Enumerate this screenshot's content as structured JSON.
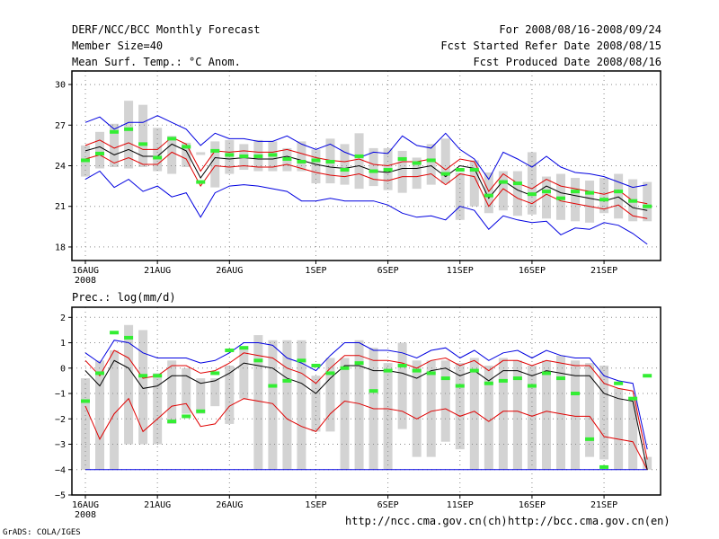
{
  "header": {
    "title": "DERF/NCC/BCC Monthly Forecast",
    "member_size": "Member Size=40",
    "variable": "Mean Surf. Temp.: °C Anom.",
    "period": "For 2008/08/16-2008/09/24",
    "started": "Fcst Started Refer Date 2008/08/15",
    "produced": "Fcst Produced Date 2008/08/16"
  },
  "footer": {
    "ncc_url": "http://ncc.cma.gov.cn(ch)",
    "bcc_url": "http://bcc.cma.gov.cn(en)",
    "credit": "GrADS: COLA/IGES"
  },
  "colors": {
    "ensemble_mean": "#000000",
    "std_band": "#e00000",
    "range_envelope": "#0000e0",
    "observed": "#33ee33",
    "spread_bar": "#d3d3d3"
  },
  "chart_data": [
    {
      "type": "line",
      "title": "Mean Surf. Temp.: °C Anom.",
      "x_tick_labels": [
        "16AUG",
        "21AUG",
        "26AUG",
        "1SEP",
        "6SEP",
        "11SEP",
        "16SEP",
        "21SEP"
      ],
      "x_year_label": "2008",
      "y_ticks": [
        18,
        21,
        24,
        27,
        30
      ],
      "y_tick_labels": [
        "18",
        "21",
        "24",
        "27",
        "30"
      ],
      "ylim": [
        17,
        31
      ],
      "grid": true,
      "days": [
        0,
        1,
        2,
        3,
        4,
        5,
        6,
        7,
        8,
        9,
        10,
        11,
        12,
        13,
        14,
        15,
        16,
        17,
        18,
        19,
        20,
        21,
        22,
        23,
        24,
        25,
        26,
        27,
        28,
        29,
        30,
        31,
        32,
        33,
        34,
        35,
        36,
        37,
        38,
        39
      ],
      "bar_low": [
        23.2,
        23.8,
        23.9,
        23.8,
        23.9,
        23.6,
        23.4,
        23.9,
        24.8,
        22.4,
        23.4,
        23.7,
        23.6,
        23.6,
        23.6,
        23.6,
        22.7,
        22.7,
        22.6,
        22.3,
        22.5,
        22.2,
        22.0,
        22.3,
        22.6,
        22.7,
        20.0,
        21.0,
        20.5,
        20.7,
        20.3,
        20.4,
        20.1,
        20.0,
        19.9,
        19.8,
        20.5,
        20.1,
        19.9,
        19.9
      ],
      "bar_high": [
        25.5,
        26.5,
        27.1,
        28.8,
        28.5,
        26.8,
        26.2,
        25.7,
        25.0,
        25.8,
        25.9,
        25.6,
        25.9,
        25.8,
        25.3,
        25.8,
        25.2,
        26.0,
        25.6,
        26.4,
        25.3,
        25.3,
        25.1,
        24.6,
        25.6,
        26.0,
        23.5,
        24.4,
        23.5,
        23.6,
        23.6,
        25.0,
        23.2,
        23.4,
        23.1,
        22.9,
        23.1,
        23.4,
        23.0,
        22.8
      ],
      "ensemble_mean": [
        25.1,
        25.4,
        24.8,
        25.2,
        24.7,
        24.7,
        25.6,
        25.1,
        23.1,
        24.6,
        24.5,
        24.6,
        24.5,
        24.5,
        24.7,
        24.4,
        24.1,
        23.9,
        23.8,
        24.0,
        23.6,
        23.5,
        23.8,
        23.8,
        24.0,
        23.2,
        24.0,
        23.8,
        21.6,
        22.9,
        22.2,
        21.8,
        22.5,
        22.0,
        21.8,
        21.6,
        21.4,
        21.7,
        20.9,
        20.7
      ],
      "std_upper": [
        25.5,
        25.9,
        25.3,
        25.7,
        25.2,
        25.2,
        26.1,
        25.6,
        23.6,
        25.1,
        25.0,
        25.1,
        25.0,
        25.0,
        25.2,
        24.9,
        24.6,
        24.4,
        24.3,
        24.5,
        24.1,
        24.0,
        24.3,
        24.3,
        24.5,
        23.7,
        24.5,
        24.3,
        22.1,
        23.4,
        22.7,
        22.3,
        23.0,
        22.5,
        22.3,
        22.1,
        21.9,
        22.2,
        21.4,
        21.2
      ],
      "std_lower": [
        24.5,
        24.8,
        24.2,
        24.6,
        24.1,
        24.1,
        25.0,
        24.5,
        22.5,
        24.0,
        23.9,
        24.0,
        23.9,
        23.9,
        24.1,
        23.8,
        23.5,
        23.3,
        23.2,
        23.4,
        23.0,
        22.9,
        23.2,
        23.2,
        23.4,
        22.6,
        23.4,
        23.2,
        21.0,
        22.3,
        21.6,
        21.2,
        21.9,
        21.4,
        21.2,
        21.0,
        20.8,
        21.1,
        20.3,
        20.1
      ],
      "max_envelope": [
        27.2,
        27.6,
        26.7,
        27.2,
        27.2,
        27.7,
        27.2,
        26.7,
        25.5,
        26.4,
        26.0,
        26.0,
        25.8,
        25.8,
        26.2,
        25.6,
        25.2,
        25.6,
        25.0,
        24.6,
        25.0,
        24.9,
        26.2,
        25.5,
        25.3,
        26.4,
        25.2,
        24.5,
        23.0,
        25.0,
        24.5,
        23.9,
        24.7,
        23.9,
        23.5,
        23.4,
        23.2,
        22.8,
        22.4,
        22.6
      ],
      "min_envelope": [
        23.0,
        23.6,
        22.4,
        23.0,
        22.1,
        22.5,
        21.7,
        22.0,
        20.2,
        22.0,
        22.5,
        22.6,
        22.5,
        22.3,
        22.1,
        21.4,
        21.4,
        21.6,
        21.4,
        21.4,
        21.4,
        21.1,
        20.5,
        20.2,
        20.3,
        20.0,
        21.0,
        20.7,
        19.3,
        20.3,
        20.0,
        19.8,
        19.9,
        18.9,
        19.4,
        19.3,
        19.8,
        19.6,
        19.0,
        18.2
      ],
      "observed": [
        24.4,
        24.9,
        26.5,
        26.7,
        25.6,
        24.6,
        26.0,
        25.4,
        22.8,
        25.1,
        24.8,
        24.7,
        24.7,
        24.8,
        24.5,
        24.3,
        24.4,
        24.3,
        23.7,
        24.7,
        23.6,
        23.7,
        24.5,
        24.2,
        24.4,
        23.4,
        23.7,
        23.7,
        21.8,
        22.8,
        22.7,
        21.9,
        22.1,
        21.6,
        22.1,
        22.0,
        21.5,
        22.1,
        21.4,
        21.0
      ]
    },
    {
      "type": "line",
      "title": "Prec.: log(mm/d)",
      "x_tick_labels": [
        "16AUG",
        "21AUG",
        "26AUG",
        "1SEP",
        "6SEP",
        "11SEP",
        "16SEP",
        "21SEP"
      ],
      "x_year_label": "2008",
      "y_ticks": [
        -5,
        -4,
        -3,
        -2,
        -1,
        0,
        1,
        2
      ],
      "y_tick_labels": [
        "−5",
        "−4",
        "−3",
        "−2",
        "−1",
        "0",
        "1",
        "2"
      ],
      "ylim": [
        -5,
        2.4
      ],
      "grid": true,
      "days": [
        0,
        1,
        2,
        3,
        4,
        5,
        6,
        7,
        8,
        9,
        10,
        11,
        12,
        13,
        14,
        15,
        16,
        17,
        18,
        19,
        20,
        21,
        22,
        23,
        24,
        25,
        26,
        27,
        28,
        29,
        30,
        31,
        32,
        33,
        34,
        35,
        36,
        37,
        38,
        39
      ],
      "bar_low": [
        -4,
        -4,
        -4,
        -3,
        -3,
        -3,
        -2.2,
        -1.8,
        -1.8,
        -1.5,
        -2.2,
        -1.2,
        -4,
        -4,
        -4,
        -4,
        -2.5,
        -2.5,
        -4,
        -4,
        -4,
        -4,
        -2.4,
        -3.5,
        -3.5,
        -2.9,
        -3.2,
        -4,
        -4,
        -4,
        -4,
        -4,
        -4,
        -4,
        -4,
        -3.5,
        -3.6,
        -4,
        -4,
        -4
      ],
      "bar_high": [
        -0.4,
        0.3,
        0.7,
        1.7,
        1.5,
        -0.2,
        0.3,
        0,
        -0.4,
        -0.4,
        0.1,
        0.8,
        1.3,
        1.1,
        1.1,
        1.1,
        -0.3,
        0.4,
        0.4,
        1.1,
        0.8,
        0.2,
        1.0,
        0.3,
        0.3,
        0.3,
        0.2,
        0.4,
        0.1,
        0.4,
        0.3,
        0.1,
        0.3,
        0.5,
        0.3,
        0.2,
        0.1,
        -0.8,
        -1.2,
        -3.5
      ],
      "ensemble_mean": [
        -0.1,
        -0.7,
        0.3,
        0,
        -0.8,
        -0.7,
        -0.3,
        -0.3,
        -0.6,
        -0.5,
        -0.2,
        0.2,
        0.1,
        0,
        -0.4,
        -0.6,
        -1.0,
        -0.4,
        0.1,
        0.1,
        -0.1,
        -0.1,
        -0.2,
        -0.4,
        -0.1,
        0,
        -0.3,
        -0.1,
        -0.5,
        -0.1,
        -0.1,
        -0.3,
        -0.1,
        -0.2,
        -0.3,
        -0.3,
        -1.0,
        -1.2,
        -1.3,
        -4
      ],
      "std_upper": [
        0.3,
        -0.3,
        0.7,
        0.4,
        -0.4,
        -0.3,
        0.1,
        0.1,
        -0.2,
        -0.1,
        0.2,
        0.6,
        0.5,
        0.4,
        0,
        -0.2,
        -0.6,
        0,
        0.5,
        0.5,
        0.3,
        0.3,
        0.2,
        0,
        0.3,
        0.4,
        0.1,
        0.3,
        -0.1,
        0.3,
        0.3,
        0.1,
        0.3,
        0.2,
        0.1,
        0.1,
        -0.6,
        -0.8,
        -0.9,
        -3.6
      ],
      "std_lower": [
        -1.5,
        -2.8,
        -1.8,
        -1.2,
        -2.5,
        -2.0,
        -1.5,
        -1.4,
        -2.3,
        -2.2,
        -1.5,
        -1.2,
        -1.3,
        -1.4,
        -2.0,
        -2.3,
        -2.5,
        -1.8,
        -1.3,
        -1.4,
        -1.6,
        -1.6,
        -1.7,
        -2.0,
        -1.7,
        -1.6,
        -1.9,
        -1.7,
        -2.1,
        -1.7,
        -1.7,
        -1.9,
        -1.7,
        -1.8,
        -1.9,
        -1.9,
        -2.7,
        -2.8,
        -2.9,
        -4
      ],
      "max_envelope": [
        0.6,
        0.2,
        1.1,
        1.0,
        0.6,
        0.4,
        0.4,
        0.4,
        0.2,
        0.3,
        0.6,
        1.0,
        1.0,
        0.9,
        0.4,
        0.2,
        -0.1,
        0.5,
        1.0,
        1.0,
        0.7,
        0.7,
        0.6,
        0.4,
        0.7,
        0.8,
        0.4,
        0.7,
        0.3,
        0.6,
        0.7,
        0.4,
        0.7,
        0.5,
        0.4,
        0.4,
        -0.3,
        -0.5,
        -0.6,
        -3.2
      ],
      "min_envelope": [
        -4,
        -4,
        -4,
        -4,
        -4,
        -4,
        -4,
        -4,
        -4,
        -4,
        -4,
        -4,
        -4,
        -4,
        -4,
        -4,
        -4,
        -4,
        -4,
        -4,
        -4,
        -4,
        -4,
        -4,
        -4,
        -4,
        -4,
        -4,
        -4,
        -4,
        -4,
        -4,
        -4,
        -4,
        -4,
        -4,
        -4,
        -4,
        -4,
        -4
      ],
      "observed": [
        -1.3,
        -0.2,
        1.4,
        1.2,
        -0.3,
        -0.3,
        -2.1,
        -1.9,
        -1.7,
        -0.2,
        0.7,
        0.8,
        0.3,
        -0.7,
        -0.5,
        0.3,
        0.1,
        -0.2,
        0,
        0.2,
        -0.9,
        -0.1,
        0.1,
        -0.1,
        -0.2,
        -0.4,
        -0.7,
        -0.1,
        -0.6,
        -0.5,
        -0.4,
        -0.7,
        -0.2,
        -0.4,
        -1.0,
        -2.8,
        -3.9,
        -0.6,
        -1.2,
        -0.3
      ]
    }
  ]
}
